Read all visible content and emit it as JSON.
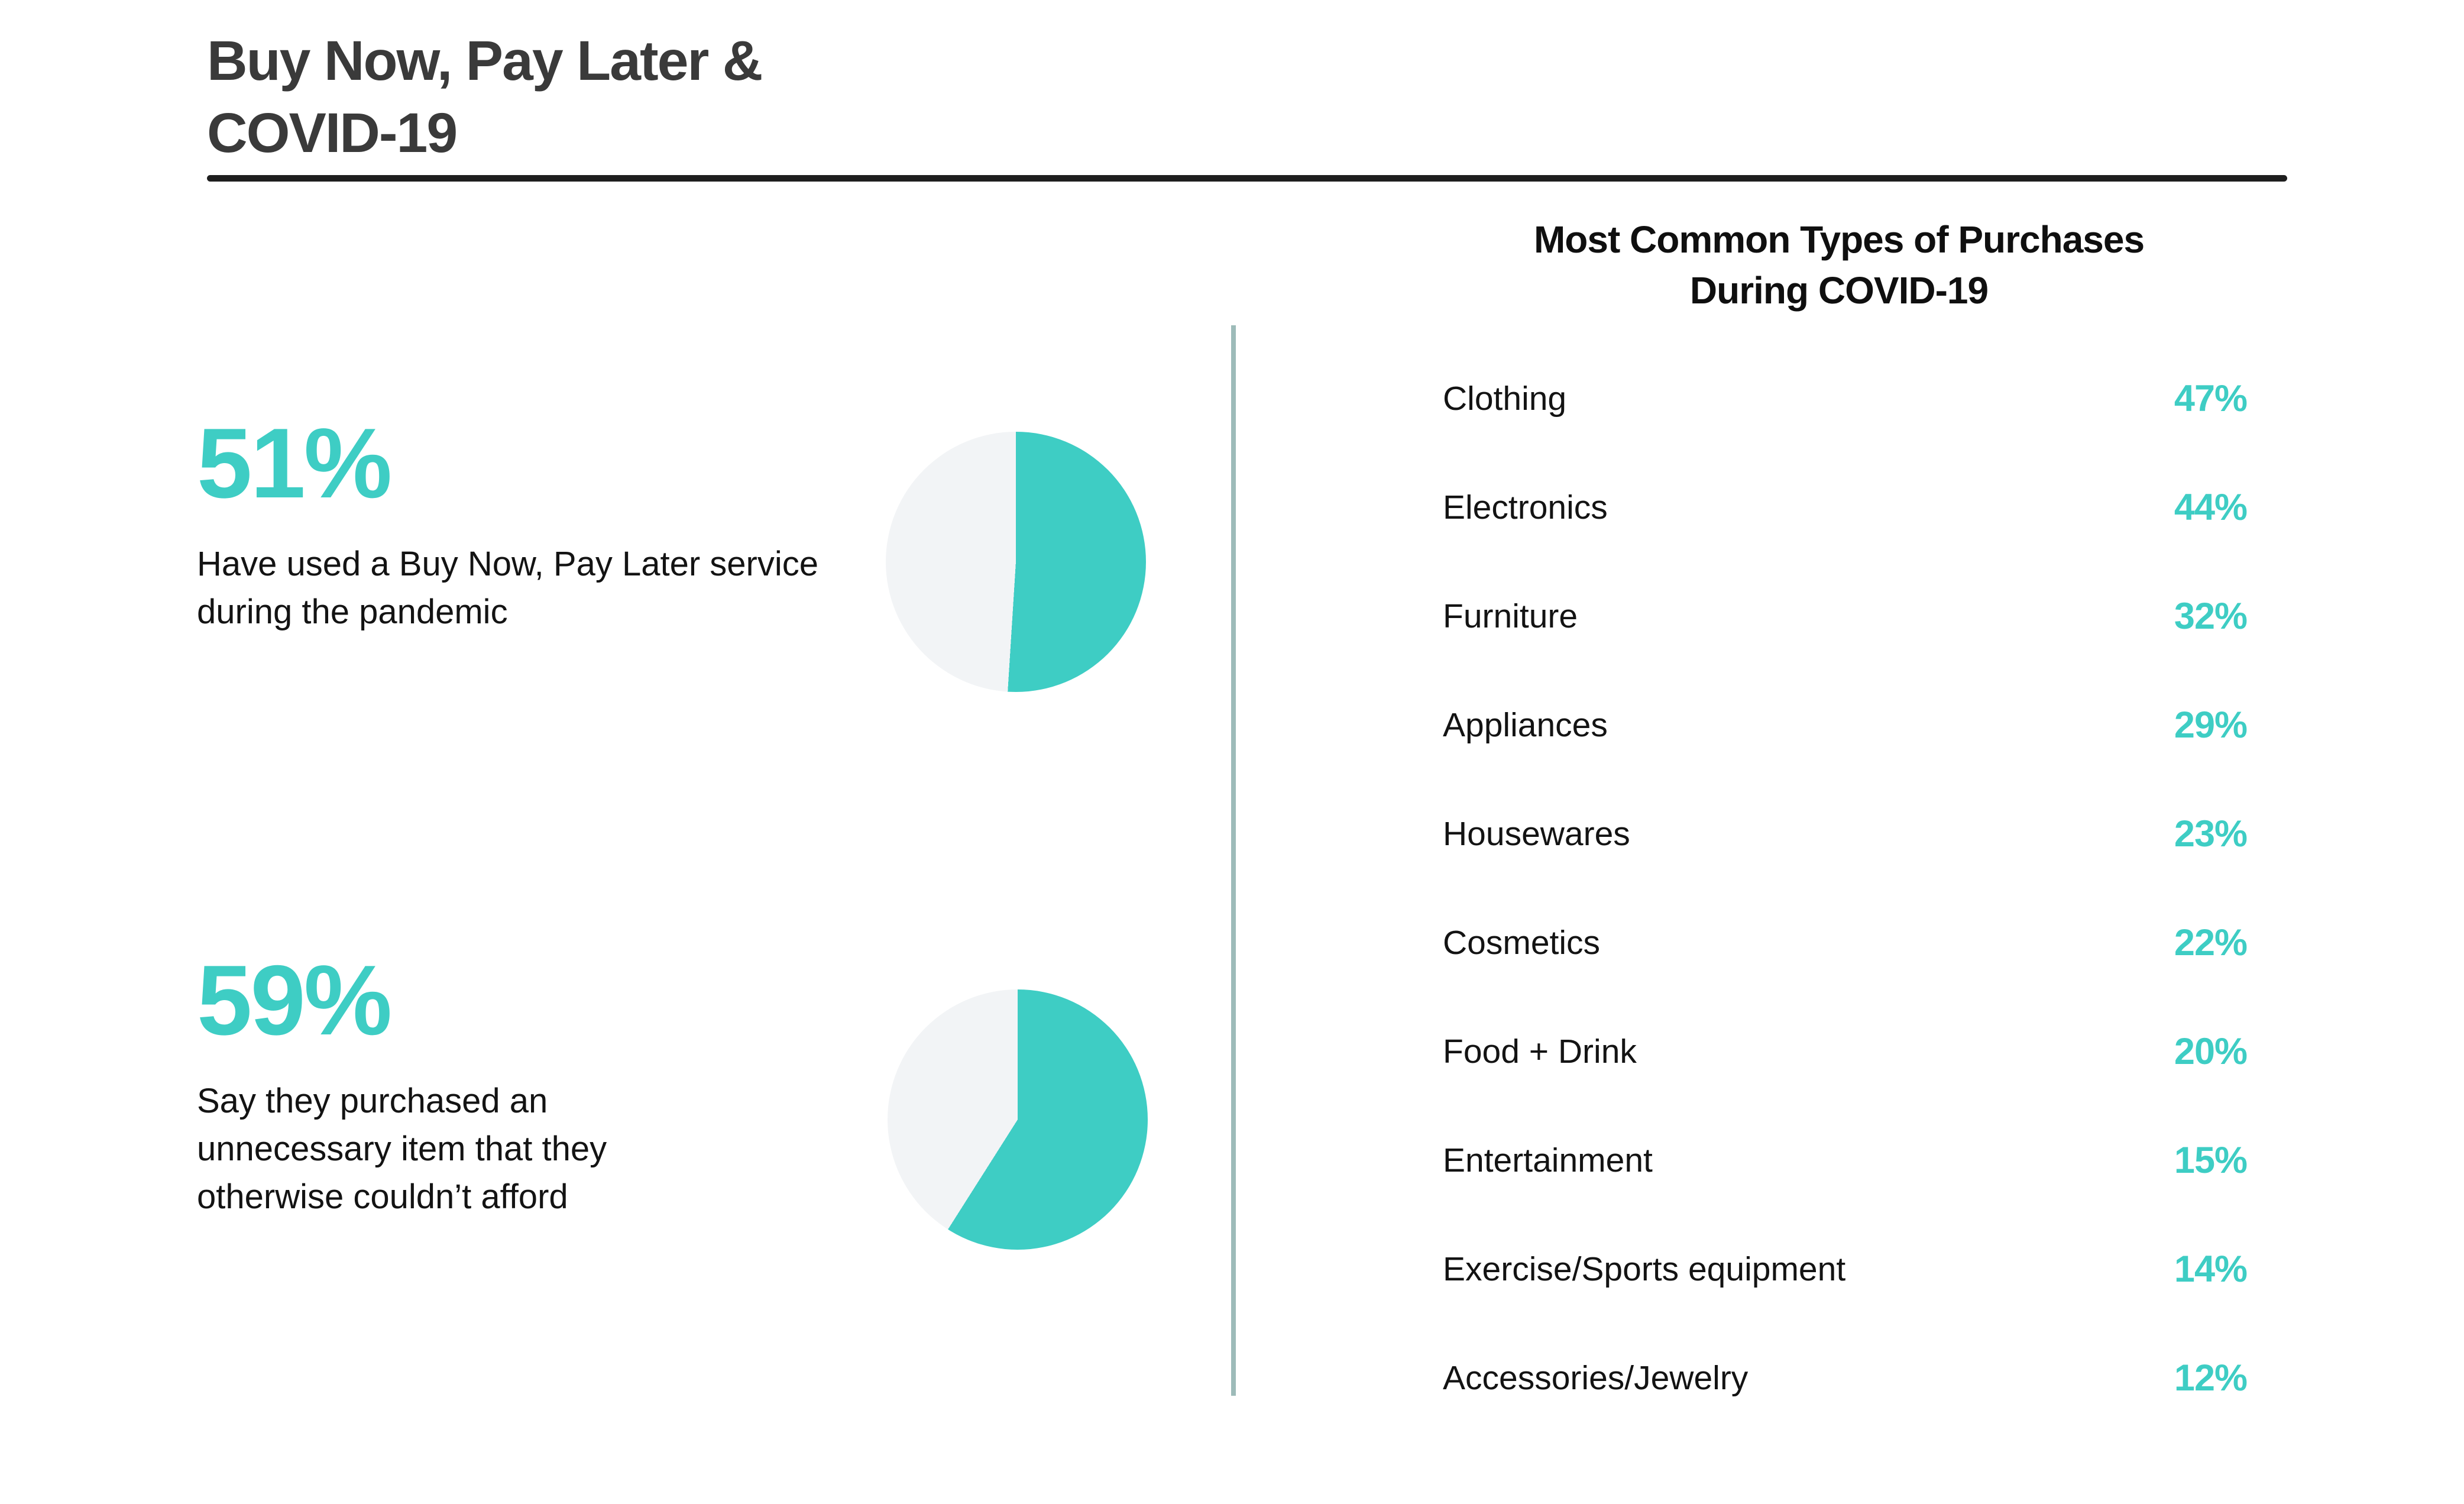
{
  "colors": {
    "accent": "#3ECDC4",
    "pie_remainder": "#F2F4F6",
    "divider": "#9DBBB9",
    "heading": "#3A3A3A",
    "text": "#131313",
    "rule": "#1E1E1E"
  },
  "header": {
    "title_line1": "Buy Now, Pay Later &",
    "title_line2": "COVID-19"
  },
  "stats": [
    {
      "value": "51%",
      "percent": 51,
      "description": "Have used a Buy Now, Pay Later service during the pandemic"
    },
    {
      "value": "59%",
      "percent": 59,
      "description": "Say they purchased an unnecessary item that they otherwise couldn’t afford"
    }
  ],
  "purchases": {
    "title_line1": "Most Common Types of Purchases",
    "title_line2": "During COVID-19",
    "items": [
      {
        "label": "Clothing",
        "value": "47%"
      },
      {
        "label": "Electronics",
        "value": "44%"
      },
      {
        "label": "Furniture",
        "value": "32%"
      },
      {
        "label": "Appliances",
        "value": "29%"
      },
      {
        "label": "Housewares",
        "value": "23%"
      },
      {
        "label": "Cosmetics",
        "value": "22%"
      },
      {
        "label": "Food + Drink",
        "value": "20%"
      },
      {
        "label": "Entertainment",
        "value": "15%"
      },
      {
        "label": "Exercise/Sports equipment",
        "value": "14%"
      },
      {
        "label": "Accessories/Jewelry",
        "value": "12%"
      }
    ]
  },
  "chart_data": [
    {
      "type": "pie",
      "title": "Have used a Buy Now, Pay Later service during the pandemic",
      "annotation": "51%",
      "values": [
        51,
        49
      ],
      "slice_colors": [
        "#3ECDC4",
        "#F2F4F6"
      ],
      "start_angle_deg": 0,
      "direction": "clockwise",
      "legend": "none",
      "labels_on_chart": "none"
    },
    {
      "type": "pie",
      "title": "Say they purchased an unnecessary item that they otherwise couldn’t afford",
      "annotation": "59%",
      "values": [
        59,
        41
      ],
      "slice_colors": [
        "#3ECDC4",
        "#F2F4F6"
      ],
      "start_angle_deg": 0,
      "direction": "clockwise",
      "legend": "none",
      "labels_on_chart": "none"
    },
    {
      "type": "table",
      "title": "Most Common Types of Purchases During COVID-19",
      "categories": [
        "Clothing",
        "Electronics",
        "Furniture",
        "Appliances",
        "Housewares",
        "Cosmetics",
        "Food + Drink",
        "Entertainment",
        "Exercise/Sports equipment",
        "Accessories/Jewelry"
      ],
      "values": [
        47,
        44,
        32,
        29,
        23,
        22,
        20,
        15,
        14,
        12
      ],
      "unit": "%",
      "value_alignment": "right"
    }
  ]
}
